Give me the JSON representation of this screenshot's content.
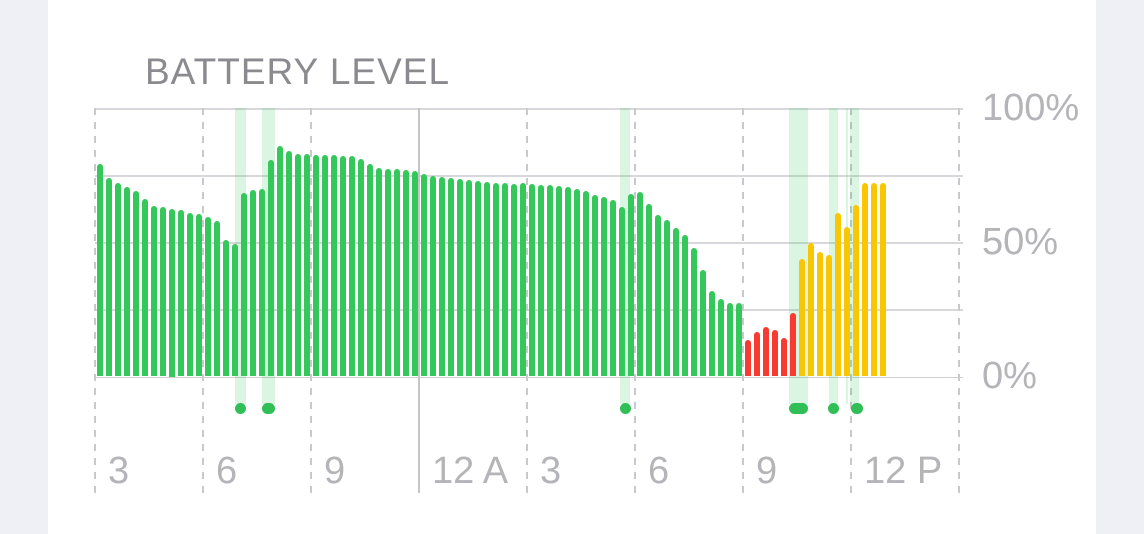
{
  "chart_data": {
    "type": "bar",
    "title": "BATTERY LEVEL",
    "ylabel": "",
    "xlabel": "",
    "ylim": [
      0,
      100
    ],
    "grid": true,
    "legend": false,
    "yticks": [
      {
        "value": 100,
        "label": "100%"
      },
      {
        "value": 50,
        "label": "50%"
      },
      {
        "value": 0,
        "label": "0%"
      }
    ],
    "ygrid_values": [
      100,
      75,
      50,
      25,
      0
    ],
    "xticks": [
      {
        "label": "3",
        "solid": false
      },
      {
        "label": "6",
        "solid": false
      },
      {
        "label": "9",
        "solid": false
      },
      {
        "label": "12 A",
        "solid": true
      },
      {
        "label": "3",
        "solid": false
      },
      {
        "label": "6",
        "solid": false
      },
      {
        "label": "9",
        "solid": false
      },
      {
        "label": "12 P",
        "solid": false
      },
      {
        "label": "",
        "solid": false
      }
    ],
    "x_interval_hours": 3,
    "bar_interval_minutes": 15,
    "bars": {
      "values": [
        79,
        74,
        72,
        70.5,
        69,
        66,
        63.5,
        63,
        62.5,
        62,
        61,
        60.5,
        59.5,
        58,
        51,
        49.5,
        68.5,
        69.5,
        70,
        80.5,
        86,
        84,
        83,
        82.7,
        82.5,
        82.5,
        82.5,
        82.3,
        82,
        81,
        79,
        77.5,
        77.3,
        77.2,
        77,
        76.6,
        75.6,
        74.7,
        74.3,
        74,
        73.4,
        73,
        72.8,
        72.4,
        72.2,
        72,
        71.8,
        72,
        71.6,
        71.4,
        71.3,
        71,
        70.6,
        70,
        69.2,
        67.5,
        66.7,
        65.7,
        63,
        67.8,
        68.8,
        64.2,
        60,
        58.2,
        55.3,
        52.6,
        48,
        39.8,
        32,
        29,
        27.4,
        27.5,
        13.7,
        16.6,
        18.5,
        17.5,
        14.4,
        23.7,
        43.7,
        49.8,
        46.5,
        45.4,
        61,
        55.6,
        64,
        72.2,
        72.2,
        72
      ],
      "segments": [
        {
          "color": "green",
          "from": 0,
          "to": 71
        },
        {
          "color": "red",
          "from": 72,
          "to": 77
        },
        {
          "color": "yellow",
          "from": 78,
          "to": 87
        }
      ]
    },
    "charge_sessions": [
      {
        "band_x": 140,
        "band_w": 11,
        "dot_cx": 145.5,
        "dot_w": 11
      },
      {
        "band_x": 167,
        "band_w": 13,
        "dot_cx": 173.5,
        "dot_w": 13
      },
      {
        "band_x": 525,
        "band_w": 10,
        "dot_cx": 530,
        "dot_w": 11
      },
      {
        "band_x": 694,
        "band_w": 19,
        "dot_cx": 703.5,
        "dot_w": 19
      },
      {
        "band_x": 734,
        "band_w": 9,
        "dot_cx": 738.5,
        "dot_w": 11
      },
      {
        "band_x": 750.5,
        "band_w": 2,
        "dot_cx": null,
        "dot_w": 0
      },
      {
        "band_x": 755,
        "band_w": 9,
        "dot_cx": 762,
        "dot_w": 12
      }
    ],
    "colors": {
      "green": "#34c759",
      "red": "#f83b30",
      "yellow": "#f9c702",
      "band": "rgba(52,199,89,0.18)",
      "dot": "#2fbf56",
      "grid_h": "#d8d8dc",
      "grid_h_bottom": "#cfcfd4",
      "grid_dash": "#c8c8cd",
      "grid_solid_v": "#c4c4c9",
      "axis_label": "#b4b4b9",
      "title": "#8a8a8f",
      "card_bg": "#ffffff",
      "margin_bg": "#eff0f5"
    }
  }
}
